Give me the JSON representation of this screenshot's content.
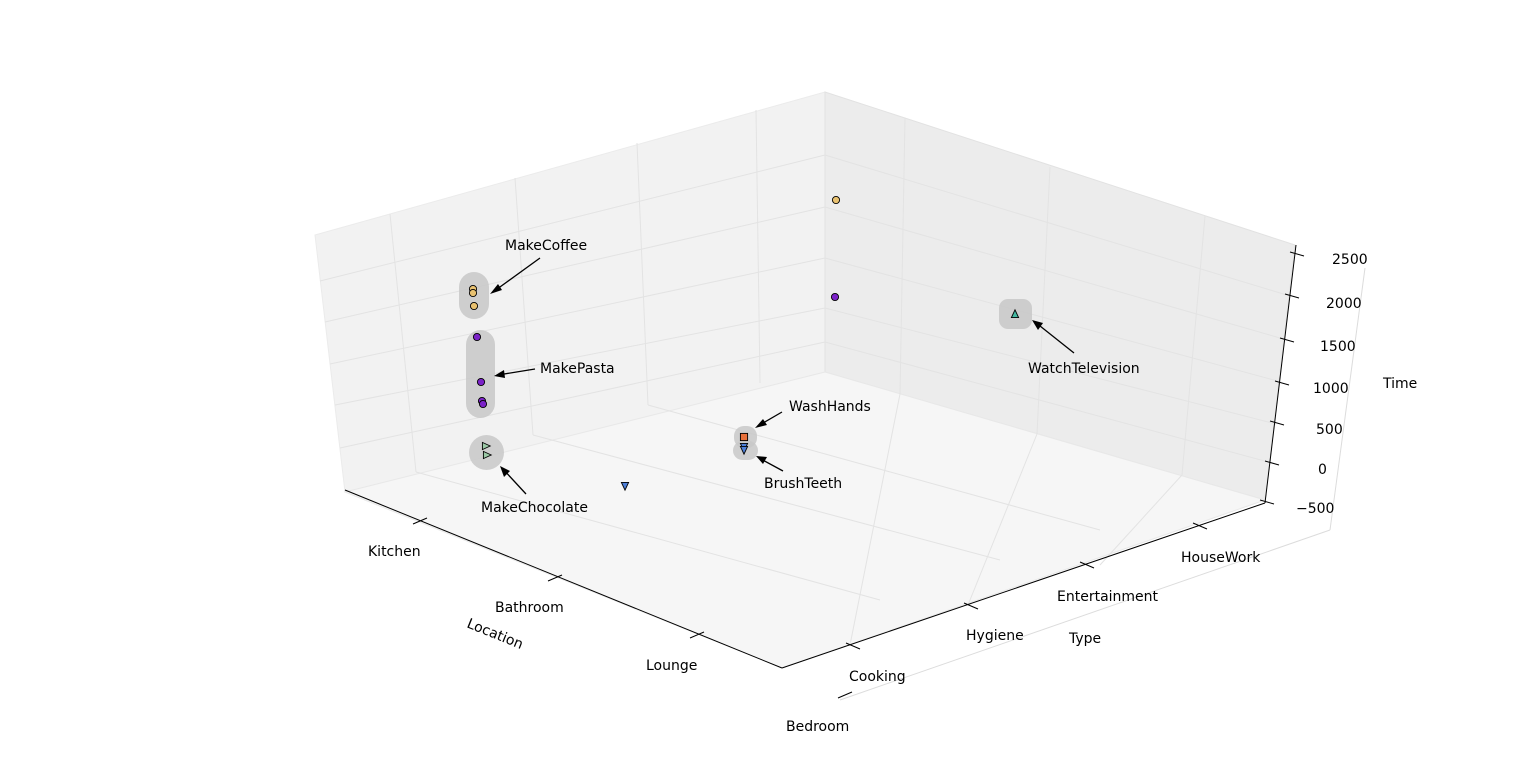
{
  "chart_data": {
    "type": "scatter",
    "projection": "3d",
    "axes": {
      "x": {
        "label": "Location",
        "categories": [
          "Kitchen",
          "Bathroom",
          "Lounge",
          "Bedroom"
        ]
      },
      "y": {
        "label": "Type",
        "categories": [
          "Cooking",
          "Hygiene",
          "Entertainment",
          "HouseWork"
        ]
      },
      "z": {
        "label": "Time",
        "ticks": [
          "2500",
          "2000",
          "1500",
          "1000",
          "500",
          "0",
          "−500"
        ],
        "range": [
          -500,
          2500
        ]
      }
    },
    "grid": true,
    "annotations": [
      {
        "text": "MakeCoffee"
      },
      {
        "text": "MakePasta"
      },
      {
        "text": "MakeChocolate"
      },
      {
        "text": "WashHands"
      },
      {
        "text": "BrushTeeth"
      },
      {
        "text": "WatchTelevision"
      }
    ],
    "points": [
      {
        "group": "MakeCoffee",
        "marker": "circle",
        "color": "#e8c170"
      },
      {
        "group": "MakeCoffee",
        "marker": "circle",
        "color": "#e8c170"
      },
      {
        "group": "MakeCoffee",
        "marker": "circle",
        "color": "#e8c170"
      },
      {
        "group": "MakePasta",
        "marker": "circle",
        "color": "#7b22c8"
      },
      {
        "group": "MakePasta",
        "marker": "circle",
        "color": "#7b22c8"
      },
      {
        "group": "MakePasta",
        "marker": "circle",
        "color": "#7b22c8"
      },
      {
        "group": "MakePasta",
        "marker": "circle",
        "color": "#7b22c8"
      },
      {
        "group": "MakeChocolate",
        "marker": "triangle-right",
        "color": "#9bc9a6"
      },
      {
        "group": "MakeChocolate",
        "marker": "triangle-right",
        "color": "#9bc9a6"
      },
      {
        "group": "WashHands",
        "marker": "square",
        "color": "#e8703a"
      },
      {
        "group": "BrushTeeth",
        "marker": "triangle-down",
        "color": "#4d7fd8"
      },
      {
        "group": "BrushTeeth",
        "marker": "triangle-down",
        "color": "#4d7fd8"
      },
      {
        "group": "WatchTelevision",
        "marker": "triangle-up",
        "color": "#42b7a0"
      },
      {
        "group": "",
        "marker": "triangle-down",
        "color": "#4d7fd8"
      },
      {
        "group": "",
        "marker": "circle",
        "color": "#e8c170"
      },
      {
        "group": "",
        "marker": "circle",
        "color": "#7b22c8"
      }
    ]
  }
}
